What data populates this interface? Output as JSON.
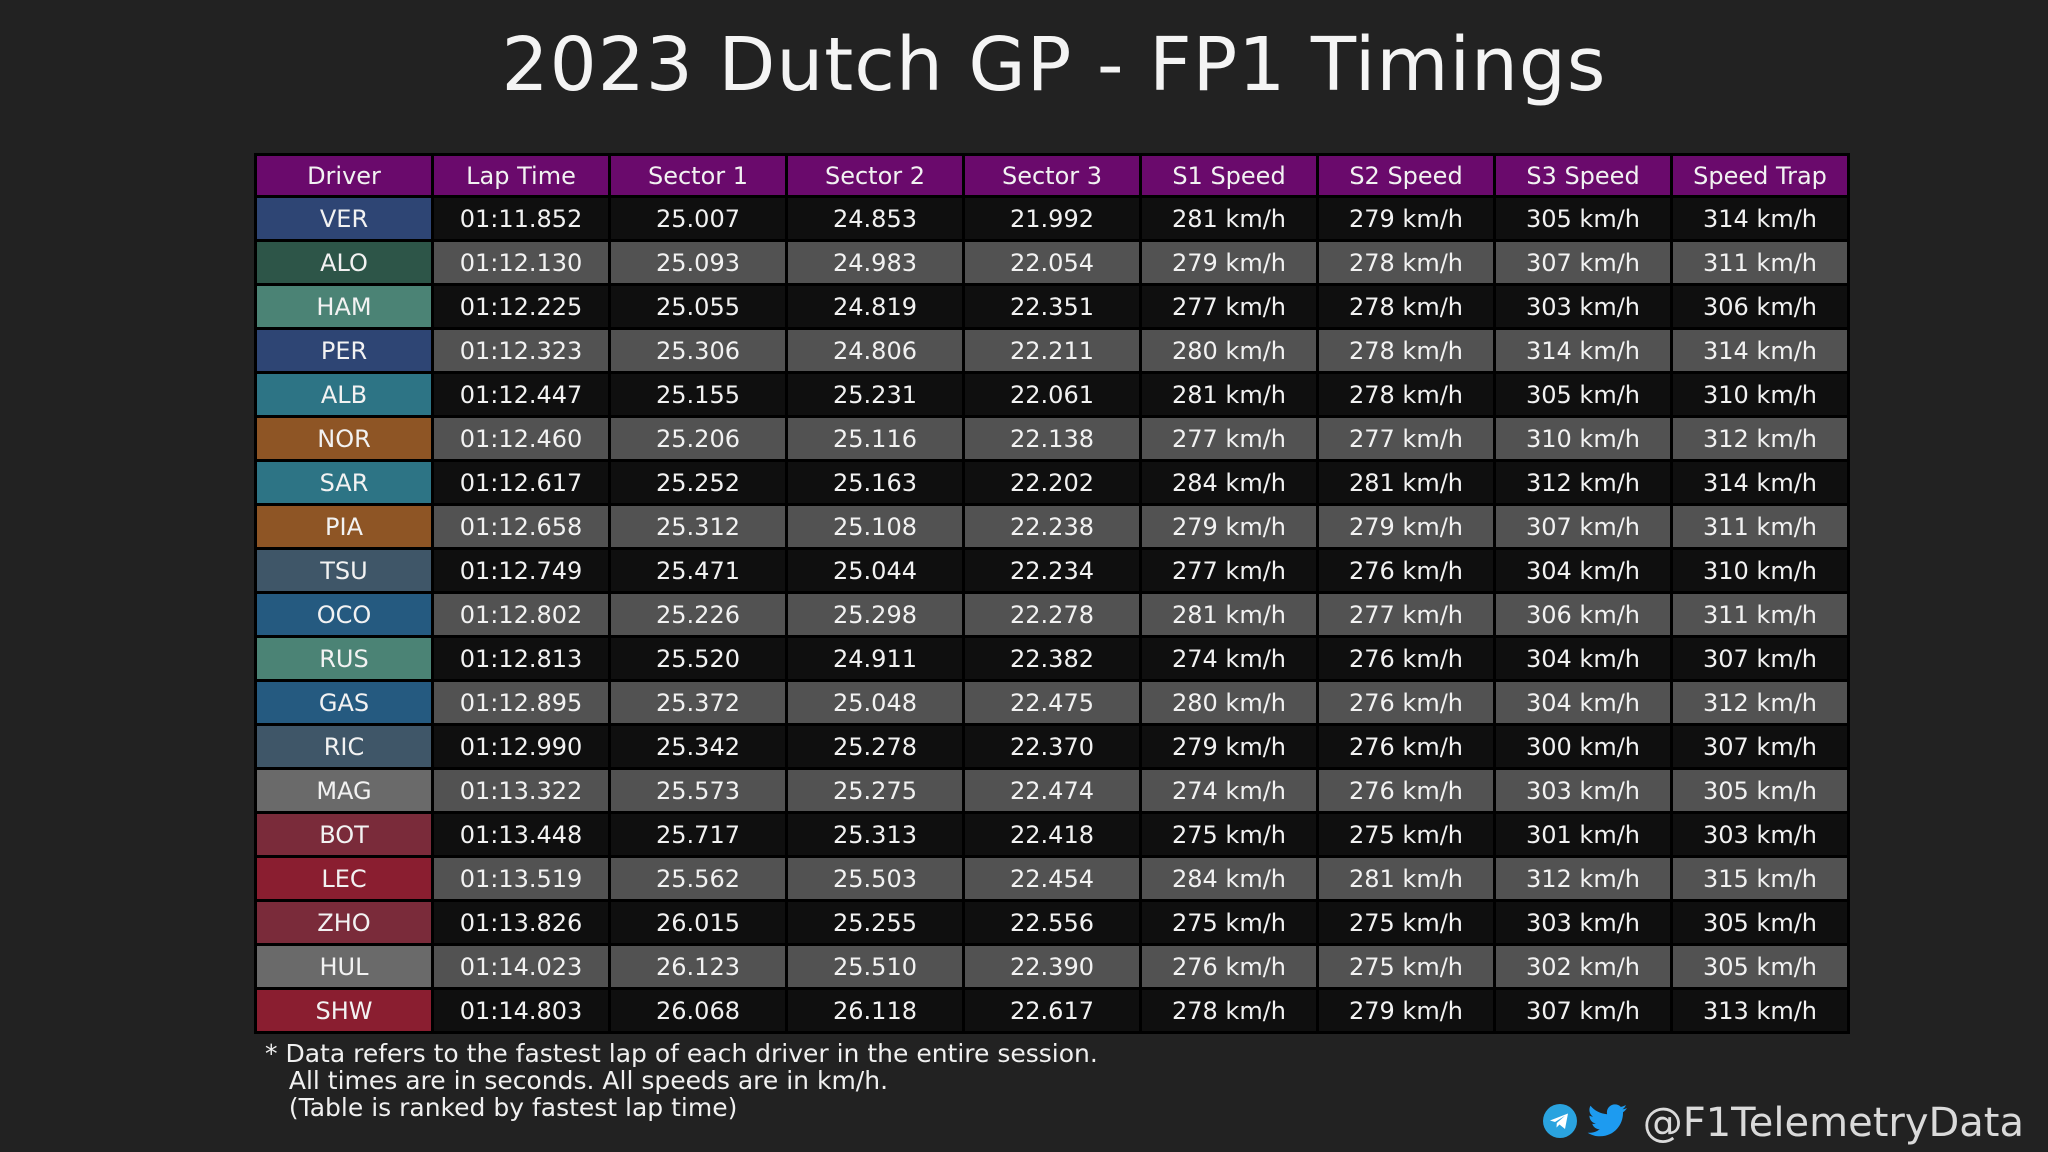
{
  "title": "2023 Dutch GP - FP1 Timings",
  "watermark": "@F1TelemetryData",
  "table": {
    "columns": [
      "Driver",
      "Lap Time",
      "Sector 1",
      "Sector 2",
      "Sector 3",
      "S1 Speed",
      "S2 Speed",
      "S3 Speed",
      "Speed Trap"
    ],
    "rows": [
      [
        "VER",
        "01:11.852",
        "25.007",
        "24.853",
        "21.992",
        "281 km/h",
        "279 km/h",
        "305 km/h",
        "314 km/h"
      ],
      [
        "ALO",
        "01:12.130",
        "25.093",
        "24.983",
        "22.054",
        "279 km/h",
        "278 km/h",
        "307 km/h",
        "311 km/h"
      ],
      [
        "HAM",
        "01:12.225",
        "25.055",
        "24.819",
        "22.351",
        "277 km/h",
        "278 km/h",
        "303 km/h",
        "306 km/h"
      ],
      [
        "PER",
        "01:12.323",
        "25.306",
        "24.806",
        "22.211",
        "280 km/h",
        "278 km/h",
        "314 km/h",
        "314 km/h"
      ],
      [
        "ALB",
        "01:12.447",
        "25.155",
        "25.231",
        "22.061",
        "281 km/h",
        "278 km/h",
        "305 km/h",
        "310 km/h"
      ],
      [
        "NOR",
        "01:12.460",
        "25.206",
        "25.116",
        "22.138",
        "277 km/h",
        "277 km/h",
        "310 km/h",
        "312 km/h"
      ],
      [
        "SAR",
        "01:12.617",
        "25.252",
        "25.163",
        "22.202",
        "284 km/h",
        "281 km/h",
        "312 km/h",
        "314 km/h"
      ],
      [
        "PIA",
        "01:12.658",
        "25.312",
        "25.108",
        "22.238",
        "279 km/h",
        "279 km/h",
        "307 km/h",
        "311 km/h"
      ],
      [
        "TSU",
        "01:12.749",
        "25.471",
        "25.044",
        "22.234",
        "277 km/h",
        "276 km/h",
        "304 km/h",
        "310 km/h"
      ],
      [
        "OCO",
        "01:12.802",
        "25.226",
        "25.298",
        "22.278",
        "281 km/h",
        "277 km/h",
        "306 km/h",
        "311 km/h"
      ],
      [
        "RUS",
        "01:12.813",
        "25.520",
        "24.911",
        "22.382",
        "274 km/h",
        "276 km/h",
        "304 km/h",
        "307 km/h"
      ],
      [
        "GAS",
        "01:12.895",
        "25.372",
        "25.048",
        "22.475",
        "280 km/h",
        "276 km/h",
        "304 km/h",
        "312 km/h"
      ],
      [
        "RIC",
        "01:12.990",
        "25.342",
        "25.278",
        "22.370",
        "279 km/h",
        "276 km/h",
        "300 km/h",
        "307 km/h"
      ],
      [
        "MAG",
        "01:13.322",
        "25.573",
        "25.275",
        "22.474",
        "274 km/h",
        "276 km/h",
        "303 km/h",
        "305 km/h"
      ],
      [
        "BOT",
        "01:13.448",
        "25.717",
        "25.313",
        "22.418",
        "275 km/h",
        "275 km/h",
        "301 km/h",
        "303 km/h"
      ],
      [
        "LEC",
        "01:13.519",
        "25.562",
        "25.503",
        "22.454",
        "284 km/h",
        "281 km/h",
        "312 km/h",
        "315 km/h"
      ],
      [
        "ZHO",
        "01:13.826",
        "26.015",
        "25.255",
        "22.556",
        "275 km/h",
        "275 km/h",
        "303 km/h",
        "305 km/h"
      ],
      [
        "HUL",
        "01:14.023",
        "26.123",
        "25.510",
        "22.390",
        "276 km/h",
        "275 km/h",
        "302 km/h",
        "305 km/h"
      ],
      [
        "SHW",
        "01:14.803",
        "26.068",
        "26.118",
        "22.617",
        "278 km/h",
        "279 km/h",
        "307 km/h",
        "313 km/h"
      ]
    ],
    "driver_colors": {
      "VER": "#2e4574",
      "ALO": "#2d5548",
      "HAM": "#4b8375",
      "PER": "#2e4574",
      "ALB": "#2d7485",
      "NOR": "#8e5525",
      "SAR": "#2d7485",
      "PIA": "#8e5525",
      "TSU": "#3f5668",
      "OCO": "#255a80",
      "RUS": "#4b8375",
      "GAS": "#255a80",
      "RIC": "#3f5668",
      "MAG": "#6a6a6a",
      "BOT": "#7a2b3a",
      "LEC": "#8a1e30",
      "ZHO": "#7a2b3a",
      "HUL": "#6a6a6a",
      "SHW": "#8a1e30"
    },
    "header_color": "#6a0a6c"
  },
  "chart_data": {
    "type": "table",
    "title": "2023 Dutch GP - FP1 Timings",
    "columns": [
      "Driver",
      "Lap Time",
      "Sector 1",
      "Sector 2",
      "Sector 3",
      "S1 Speed",
      "S2 Speed",
      "S3 Speed",
      "Speed Trap"
    ],
    "rows": [
      [
        "VER",
        "01:11.852",
        "25.007",
        "24.853",
        "21.992",
        "281 km/h",
        "279 km/h",
        "305 km/h",
        "314 km/h"
      ],
      [
        "ALO",
        "01:12.130",
        "25.093",
        "24.983",
        "22.054",
        "279 km/h",
        "278 km/h",
        "307 km/h",
        "311 km/h"
      ],
      [
        "HAM",
        "01:12.225",
        "25.055",
        "24.819",
        "22.351",
        "277 km/h",
        "278 km/h",
        "303 km/h",
        "306 km/h"
      ],
      [
        "PER",
        "01:12.323",
        "25.306",
        "24.806",
        "22.211",
        "280 km/h",
        "278 km/h",
        "314 km/h",
        "314 km/h"
      ],
      [
        "ALB",
        "01:12.447",
        "25.155",
        "25.231",
        "22.061",
        "281 km/h",
        "278 km/h",
        "305 km/h",
        "310 km/h"
      ],
      [
        "NOR",
        "01:12.460",
        "25.206",
        "25.116",
        "22.138",
        "277 km/h",
        "277 km/h",
        "310 km/h",
        "312 km/h"
      ],
      [
        "SAR",
        "01:12.617",
        "25.252",
        "25.163",
        "22.202",
        "284 km/h",
        "281 km/h",
        "312 km/h",
        "314 km/h"
      ],
      [
        "PIA",
        "01:12.658",
        "25.312",
        "25.108",
        "22.238",
        "279 km/h",
        "279 km/h",
        "307 km/h",
        "311 km/h"
      ],
      [
        "TSU",
        "01:12.749",
        "25.471",
        "25.044",
        "22.234",
        "277 km/h",
        "276 km/h",
        "304 km/h",
        "310 km/h"
      ],
      [
        "OCO",
        "01:12.802",
        "25.226",
        "25.298",
        "22.278",
        "281 km/h",
        "277 km/h",
        "306 km/h",
        "311 km/h"
      ],
      [
        "RUS",
        "01:12.813",
        "25.520",
        "24.911",
        "22.382",
        "274 km/h",
        "276 km/h",
        "304 km/h",
        "307 km/h"
      ],
      [
        "GAS",
        "01:12.895",
        "25.372",
        "25.048",
        "22.475",
        "280 km/h",
        "276 km/h",
        "304 km/h",
        "312 km/h"
      ],
      [
        "RIC",
        "01:12.990",
        "25.342",
        "25.278",
        "22.370",
        "279 km/h",
        "276 km/h",
        "300 km/h",
        "307 km/h"
      ],
      [
        "MAG",
        "01:13.322",
        "25.573",
        "25.275",
        "22.474",
        "274 km/h",
        "276 km/h",
        "303 km/h",
        "305 km/h"
      ],
      [
        "BOT",
        "01:13.448",
        "25.717",
        "25.313",
        "22.418",
        "275 km/h",
        "275 km/h",
        "301 km/h",
        "303 km/h"
      ],
      [
        "LEC",
        "01:13.519",
        "25.562",
        "25.503",
        "22.454",
        "284 km/h",
        "281 km/h",
        "312 km/h",
        "315 km/h"
      ],
      [
        "ZHO",
        "01:13.826",
        "26.015",
        "25.255",
        "22.556",
        "275 km/h",
        "275 km/h",
        "303 km/h",
        "305 km/h"
      ],
      [
        "HUL",
        "01:14.023",
        "26.123",
        "25.510",
        "22.390",
        "276 km/h",
        "275 km/h",
        "302 km/h",
        "305 km/h"
      ],
      [
        "SHW",
        "01:14.803",
        "26.068",
        "26.118",
        "22.617",
        "278 km/h",
        "279 km/h",
        "307 km/h",
        "313 km/h"
      ]
    ]
  },
  "footnote": {
    "line1": "* Data refers to the fastest lap of each driver in the entire session.",
    "line2": "   All times are in seconds. All speeds are in km/h.",
    "line3": "   (Table is ranked by fastest lap time)"
  },
  "social": {
    "handle": "@F1TelemetryData",
    "icons": [
      "telegram-icon",
      "twitter-icon"
    ],
    "telegram_color": "#2aa3df",
    "twitter_color": "#1d9bf0"
  }
}
